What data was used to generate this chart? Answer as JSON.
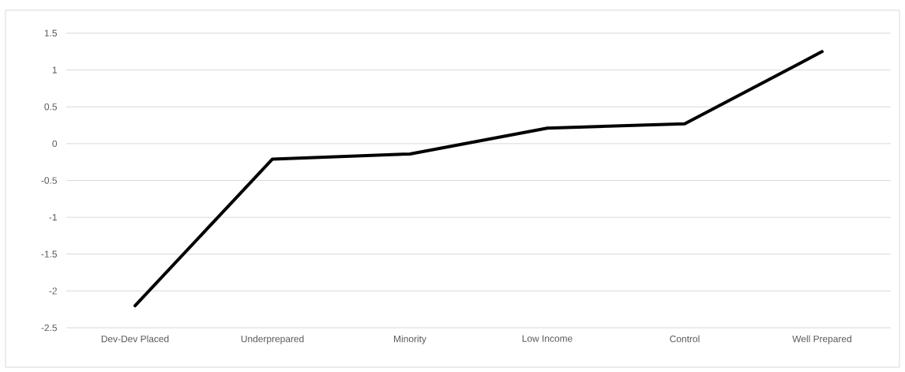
{
  "chart_data": {
    "type": "line",
    "categories": [
      "Dev-Dev Placed",
      "Underprepared",
      "Minority",
      "Low Income",
      "Control",
      "Well Prepared"
    ],
    "values": [
      -2.2,
      -0.21,
      -0.14,
      0.21,
      0.27,
      1.25
    ],
    "color": "#000000",
    "ylim": [
      -2.5,
      1.5
    ],
    "yticks": [
      -2.5,
      -2,
      -1.5,
      -1,
      -0.5,
      0,
      0.5,
      1,
      1.5
    ],
    "grid": "y",
    "marker": "none",
    "line_style": "solid"
  }
}
